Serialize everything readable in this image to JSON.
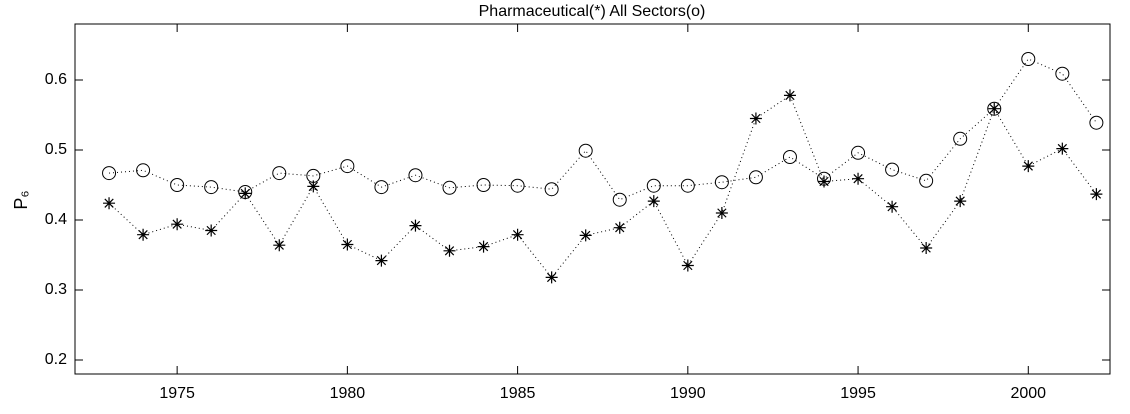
{
  "chart_data": {
    "type": "line",
    "title": "Pharmaceutical(*)  All Sectors(o)",
    "y_label": "P₆",
    "x": [
      1973,
      1974,
      1975,
      1976,
      1977,
      1978,
      1979,
      1980,
      1981,
      1982,
      1983,
      1984,
      1985,
      1986,
      1987,
      1988,
      1989,
      1990,
      1991,
      1992,
      1993,
      1994,
      1995,
      1996,
      1997,
      1998,
      1999,
      2000,
      2001,
      2002
    ],
    "series": [
      {
        "marker": "star",
        "color": "#000000",
        "values": [
          0.424,
          0.379,
          0.394,
          0.385,
          0.438,
          0.364,
          0.448,
          0.365,
          0.342,
          0.392,
          0.356,
          0.362,
          0.379,
          0.318,
          0.378,
          0.389,
          0.427,
          0.335,
          0.41,
          0.545,
          0.578,
          0.455,
          0.459,
          0.419,
          0.36,
          0.427,
          0.559,
          0.477,
          0.502,
          0.437
        ]
      },
      {
        "marker": "circle",
        "color": "#000000",
        "values": [
          0.467,
          0.471,
          0.45,
          0.447,
          0.44,
          0.467,
          0.463,
          0.477,
          0.447,
          0.464,
          0.446,
          0.45,
          0.449,
          0.444,
          0.499,
          0.429,
          0.449,
          0.449,
          0.454,
          0.461,
          0.49,
          0.459,
          0.496,
          0.472,
          0.456,
          0.516,
          0.559,
          0.63,
          0.609,
          0.539
        ]
      }
    ],
    "xlim": [
      1972,
      2002.4
    ],
    "xticks": [
      1975,
      1980,
      1985,
      1990,
      1995,
      2000
    ],
    "ylim": [
      0.18,
      0.68
    ],
    "yticks": [
      0.2,
      0.3,
      0.4,
      0.5,
      0.6
    ],
    "grid": false
  }
}
